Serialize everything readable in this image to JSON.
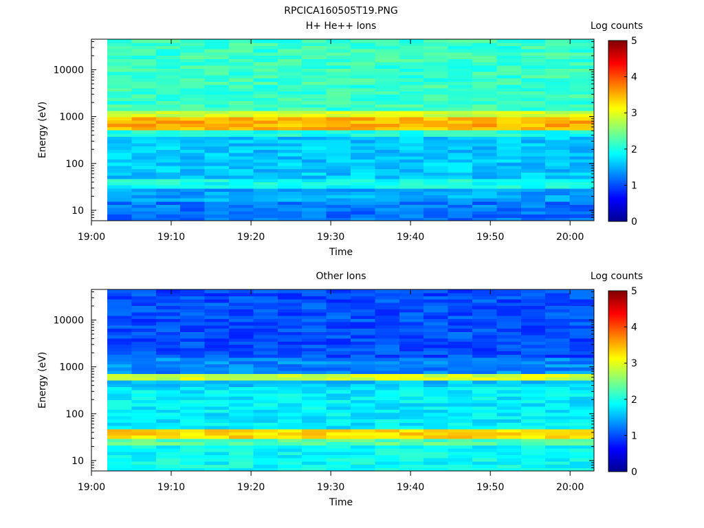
{
  "figure": {
    "title": "RPCICA160505T19.PNG"
  },
  "chart_data": [
    {
      "type": "heatmap",
      "title": "H+ He++ Ions",
      "xlabel": "Time",
      "ylabel": "Energy (eV)",
      "y_scale": "log",
      "xlim": [
        "19:00",
        "20:03"
      ],
      "ylim": [
        6,
        45000
      ],
      "x_ticks": [
        "19:00",
        "19:10",
        "19:20",
        "19:30",
        "19:40",
        "19:50",
        "20:00"
      ],
      "y_ticks": [
        "10",
        "100",
        "1000",
        "10000"
      ],
      "time_bins": [
        "19:02",
        "19:05",
        "19:08",
        "19:12",
        "19:15",
        "19:18",
        "19:21",
        "19:24",
        "19:27",
        "19:30",
        "19:34",
        "19:37",
        "19:40",
        "19:43",
        "19:46",
        "19:49",
        "19:52",
        "19:56",
        "19:59",
        "20:02"
      ],
      "colorbar": {
        "label": "Log counts",
        "range": [
          0,
          5
        ],
        "ticks": [
          "0",
          "1",
          "2",
          "3",
          "4",
          "5"
        ],
        "colormap": "jet"
      },
      "bands": [
        {
          "energy_range_eV": [
            6,
            16
          ],
          "log_counts": 1.2
        },
        {
          "energy_range_eV": [
            16,
            30
          ],
          "log_counts": 1.45
        },
        {
          "energy_range_eV": [
            36,
            46
          ],
          "log_counts": 1.95
        },
        {
          "energy_range_eV": [
            50,
            400
          ],
          "log_counts": 1.6
        },
        {
          "energy_range_eV": [
            450,
            560
          ],
          "log_counts": 2.0
        },
        {
          "energy_range_eV": [
            560,
            760
          ],
          "log_counts": 3.5
        },
        {
          "energy_range_eV": [
            1150,
            1400
          ],
          "log_counts": 2.9
        },
        {
          "energy_range_eV": [
            1400,
            45000
          ],
          "log_counts": 2.15
        }
      ],
      "peak_energy_eV": 650,
      "peak_log_counts": 3.5
    },
    {
      "type": "heatmap",
      "title": "Other Ions",
      "xlabel": "Time",
      "ylabel": "Energy (eV)",
      "y_scale": "log",
      "xlim": [
        "19:00",
        "20:03"
      ],
      "ylim": [
        6,
        45000
      ],
      "x_ticks": [
        "19:00",
        "19:10",
        "19:20",
        "19:30",
        "19:40",
        "19:50",
        "20:00"
      ],
      "y_ticks": [
        "10",
        "100",
        "1000",
        "10000"
      ],
      "time_bins": [
        "19:02",
        "19:05",
        "19:08",
        "19:12",
        "19:15",
        "19:18",
        "19:21",
        "19:24",
        "19:27",
        "19:30",
        "19:34",
        "19:37",
        "19:40",
        "19:43",
        "19:46",
        "19:49",
        "19:52",
        "19:56",
        "19:59",
        "20:02"
      ],
      "colorbar": {
        "label": "Log counts",
        "range": [
          0,
          5
        ],
        "ticks": [
          "0",
          "1",
          "2",
          "3",
          "4",
          "5"
        ],
        "colormap": "jet"
      },
      "bands": [
        {
          "energy_range_eV": [
            6,
            23
          ],
          "log_counts": 1.9
        },
        {
          "energy_range_eV": [
            23,
            28
          ],
          "log_counts": 2.3
        },
        {
          "energy_range_eV": [
            28,
            45
          ],
          "log_counts": 3.3
        },
        {
          "energy_range_eV": [
            45,
            400
          ],
          "log_counts": 1.8
        },
        {
          "energy_range_eV": [
            400,
            550
          ],
          "log_counts": 1.6
        },
        {
          "energy_range_eV": [
            550,
            760
          ],
          "log_counts": 2.9
        },
        {
          "energy_range_eV": [
            760,
            1500
          ],
          "log_counts": 1.3
        },
        {
          "energy_range_eV": [
            1500,
            45000
          ],
          "log_counts": 1.0
        }
      ],
      "peak_energy_eV": 35,
      "peak_log_counts": 3.3
    }
  ]
}
